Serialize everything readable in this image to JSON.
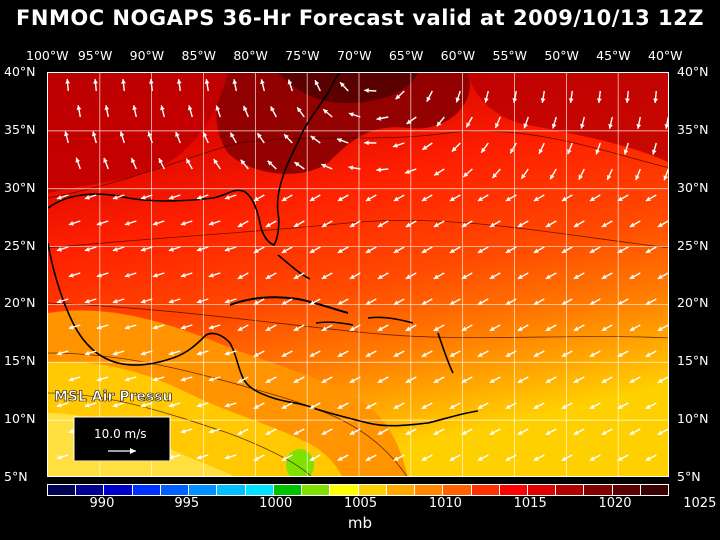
{
  "title": "FNMOC NOGAPS 36-Hr Forecast valid at 2009/10/13 12Z",
  "lon_labels": [
    "100°W",
    "95°W",
    "90°W",
    "85°W",
    "80°W",
    "75°W",
    "70°W",
    "65°W",
    "60°W",
    "55°W",
    "50°W",
    "45°W",
    "40°W"
  ],
  "lat_labels": [
    "40°N",
    "35°N",
    "30°N",
    "25°N",
    "20°N",
    "15°N",
    "10°N",
    "5°N"
  ],
  "field_label": "MSL Air Pressure",
  "wind_scale_label": "10.0 m/s",
  "units": "mb",
  "scale_labels": [
    "990",
    "995",
    "1000",
    "1005",
    "1010",
    "1015",
    "1020",
    "1025"
  ],
  "scale_colors": [
    "#000055",
    "#000090",
    "#0000cc",
    "#0030ff",
    "#0060ff",
    "#0090ff",
    "#00c0ff",
    "#00e0ff",
    "#00c000",
    "#80e000",
    "#ffff00",
    "#ffd000",
    "#ffa800",
    "#ff8800",
    "#ff6000",
    "#ff3000",
    "#ff0000",
    "#e00000",
    "#b00000",
    "#800000",
    "#5a0000",
    "#3a0000"
  ],
  "map_colors": {
    "light_yellow": "#ffe040",
    "yellow_orange": "#ffc000",
    "orange": "#ff8800",
    "red_orange": "#ff4800",
    "red": "#ff2000",
    "dark_red": "#c80000",
    "maroon": "#880000",
    "green": "#80e000"
  }
}
